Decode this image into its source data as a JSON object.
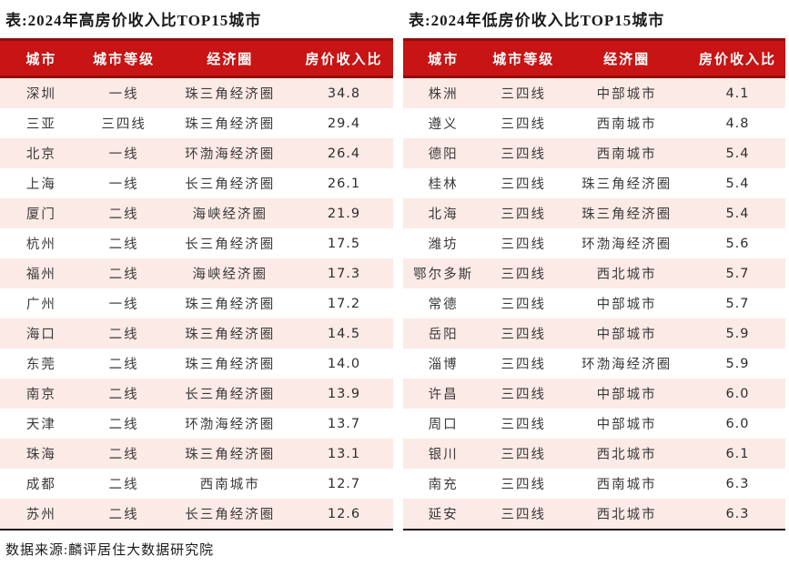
{
  "source_note": "数据来源:麟评居住大数据研究院",
  "colors": {
    "header_bg": "#c81414",
    "header_border": "#8f0e0e",
    "header_text": "#ffffff",
    "row_alt_pink": "#fceae6",
    "row_white": "#ffffff",
    "table_bottom_rule": "#141414",
    "title_text": "#1b1b1b"
  },
  "tables": [
    {
      "title": "表:2024年高房价收入比TOP15城市",
      "columns": [
        "城市",
        "城市等级",
        "经济圈",
        "房价收入比"
      ],
      "rows": [
        [
          "深圳",
          "一线",
          "珠三角经济圈",
          "34.8"
        ],
        [
          "三亚",
          "三四线",
          "珠三角经济圈",
          "29.4"
        ],
        [
          "北京",
          "一线",
          "环渤海经济圈",
          "26.4"
        ],
        [
          "上海",
          "一线",
          "长三角经济圈",
          "26.1"
        ],
        [
          "厦门",
          "二线",
          "海峡经济圈",
          "21.9"
        ],
        [
          "杭州",
          "二线",
          "长三角经济圈",
          "17.5"
        ],
        [
          "福州",
          "二线",
          "海峡经济圈",
          "17.3"
        ],
        [
          "广州",
          "一线",
          "珠三角经济圈",
          "17.2"
        ],
        [
          "海口",
          "二线",
          "珠三角经济圈",
          "14.5"
        ],
        [
          "东莞",
          "二线",
          "珠三角经济圈",
          "14.0"
        ],
        [
          "南京",
          "二线",
          "长三角经济圈",
          "13.9"
        ],
        [
          "天津",
          "二线",
          "环渤海经济圈",
          "13.7"
        ],
        [
          "珠海",
          "二线",
          "珠三角经济圈",
          "13.1"
        ],
        [
          "成都",
          "二线",
          "西南城市",
          "12.7"
        ],
        [
          "苏州",
          "二线",
          "长三角经济圈",
          "12.6"
        ]
      ]
    },
    {
      "title": "表:2024年低房价收入比TOP15城市",
      "columns": [
        "城市",
        "城市等级",
        "经济圈",
        "房价收入比"
      ],
      "rows": [
        [
          "株洲",
          "三四线",
          "中部城市",
          "4.1"
        ],
        [
          "遵义",
          "三四线",
          "西南城市",
          "4.8"
        ],
        [
          "德阳",
          "三四线",
          "西南城市",
          "5.4"
        ],
        [
          "桂林",
          "三四线",
          "珠三角经济圈",
          "5.4"
        ],
        [
          "北海",
          "三四线",
          "珠三角经济圈",
          "5.4"
        ],
        [
          "潍坊",
          "三四线",
          "环渤海经济圈",
          "5.6"
        ],
        [
          "鄂尔多斯",
          "三四线",
          "西北城市",
          "5.7"
        ],
        [
          "常德",
          "三四线",
          "中部城市",
          "5.7"
        ],
        [
          "岳阳",
          "三四线",
          "中部城市",
          "5.9"
        ],
        [
          "淄博",
          "三四线",
          "环渤海经济圈",
          "5.9"
        ],
        [
          "许昌",
          "三四线",
          "中部城市",
          "6.0"
        ],
        [
          "周口",
          "三四线",
          "中部城市",
          "6.0"
        ],
        [
          "银川",
          "三四线",
          "西北城市",
          "6.1"
        ],
        [
          "南充",
          "三四线",
          "西南城市",
          "6.3"
        ],
        [
          "延安",
          "三四线",
          "西北城市",
          "6.3"
        ]
      ]
    }
  ]
}
